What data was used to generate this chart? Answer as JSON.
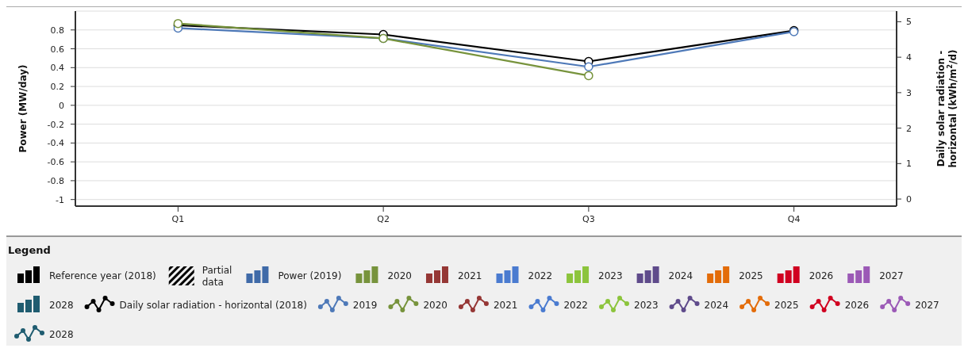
{
  "chart_data": {
    "type": "line",
    "ylabel": "Power (MW/day)",
    "y2label": "Daily solar radiation - horizontal (kWh/m$^{2}$/d)",
    "legend_title": "Legend",
    "annotations": [
      "Partial data"
    ],
    "categories": [
      "Q1",
      "Q2",
      "Q3",
      "Q4"
    ],
    "ylim": [
      -1.07,
      1
    ],
    "yticks": [
      -1,
      -0.8,
      -0.6,
      -0.4,
      -0.2,
      0,
      0.2,
      0.4,
      0.6,
      0.8
    ],
    "y2lim": [
      -0.2,
      5.3
    ],
    "y2ticks": [
      0,
      1,
      2,
      3,
      4,
      5
    ],
    "grid": "y",
    "legend": "bottom",
    "marker": "circle",
    "line_style": "solid",
    "series": [
      {
        "name": "Reference year (2018)",
        "type": "bar",
        "color": "#000000",
        "values": [
          null,
          null,
          null,
          null
        ]
      },
      {
        "name": "Power (2019)",
        "type": "bar",
        "color": "#3f6aa8",
        "values": [
          null,
          null,
          null,
          null
        ]
      },
      {
        "name": "2020",
        "type": "bar",
        "color": "#77933c",
        "values": [
          null,
          null,
          null,
          null
        ]
      },
      {
        "name": "2021",
        "type": "bar",
        "color": "#953735",
        "values": [
          null,
          null,
          null,
          null
        ]
      },
      {
        "name": "2022",
        "type": "bar",
        "color": "#4a7bd0",
        "values": [
          null,
          null,
          null,
          null
        ]
      },
      {
        "name": "2023",
        "type": "bar",
        "color": "#8cc43c",
        "values": [
          null,
          null,
          null,
          null
        ]
      },
      {
        "name": "2024",
        "type": "bar",
        "color": "#5f4b8b",
        "values": [
          null,
          null,
          null,
          null
        ]
      },
      {
        "name": "2025",
        "type": "bar",
        "color": "#e36c09",
        "values": [
          null,
          null,
          null,
          null
        ]
      },
      {
        "name": "2026",
        "type": "bar",
        "color": "#d00020",
        "values": [
          null,
          null,
          null,
          null
        ]
      },
      {
        "name": "2027",
        "type": "bar",
        "color": "#9b59b6",
        "values": [
          null,
          null,
          null,
          null
        ]
      },
      {
        "name": "2028",
        "type": "bar",
        "color": "#1f5c70",
        "values": [
          null,
          null,
          null,
          null
        ]
      },
      {
        "name": "Daily solar radiation - horizontal (2018)",
        "axis": "y2",
        "color": "#000000",
        "values": [
          4.9,
          4.64,
          3.88,
          4.75
        ]
      },
      {
        "name": "2019",
        "axis": "y2",
        "color": "#4e79b8",
        "values": [
          4.82,
          4.53,
          3.73,
          4.72
        ]
      },
      {
        "name": "2020",
        "axis": "y2",
        "color": "#77933c",
        "values": [
          4.95,
          4.53,
          3.48,
          null
        ]
      },
      {
        "name": "2021",
        "axis": "y2",
        "color": "#953735",
        "values": [
          null,
          null,
          null,
          null
        ]
      },
      {
        "name": "2022",
        "axis": "y2",
        "color": "#4a7bd0",
        "values": [
          null,
          null,
          null,
          null
        ]
      },
      {
        "name": "2023",
        "axis": "y2",
        "color": "#8cc43c",
        "values": [
          null,
          null,
          null,
          null
        ]
      },
      {
        "name": "2024",
        "axis": "y2",
        "color": "#5f4b8b",
        "values": [
          null,
          null,
          null,
          null
        ]
      },
      {
        "name": "2025",
        "axis": "y2",
        "color": "#e36c09",
        "values": [
          null,
          null,
          null,
          null
        ]
      },
      {
        "name": "2026",
        "axis": "y2",
        "color": "#d00020",
        "values": [
          null,
          null,
          null,
          null
        ]
      },
      {
        "name": "2027",
        "axis": "y2",
        "color": "#9b59b6",
        "values": [
          null,
          null,
          null,
          null
        ]
      },
      {
        "name": "2028",
        "axis": "y2",
        "color": "#1f5c70",
        "values": [
          null,
          null,
          null,
          null
        ]
      }
    ]
  }
}
